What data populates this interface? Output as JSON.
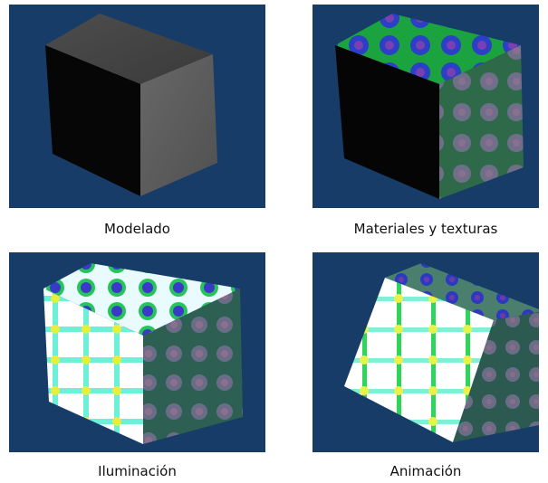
{
  "captions": {
    "top_left": "Modelado",
    "top_right": "Materiales y texturas",
    "bottom_left": "Iluminación",
    "bottom_right": "Animación"
  },
  "colors": {
    "background": "#173c68",
    "cube_gray": "#4a4a4a",
    "texture_green": "#1fd24b",
    "texture_blue": "#2f4dd4",
    "texture_yellow": "#f3ee3a"
  }
}
